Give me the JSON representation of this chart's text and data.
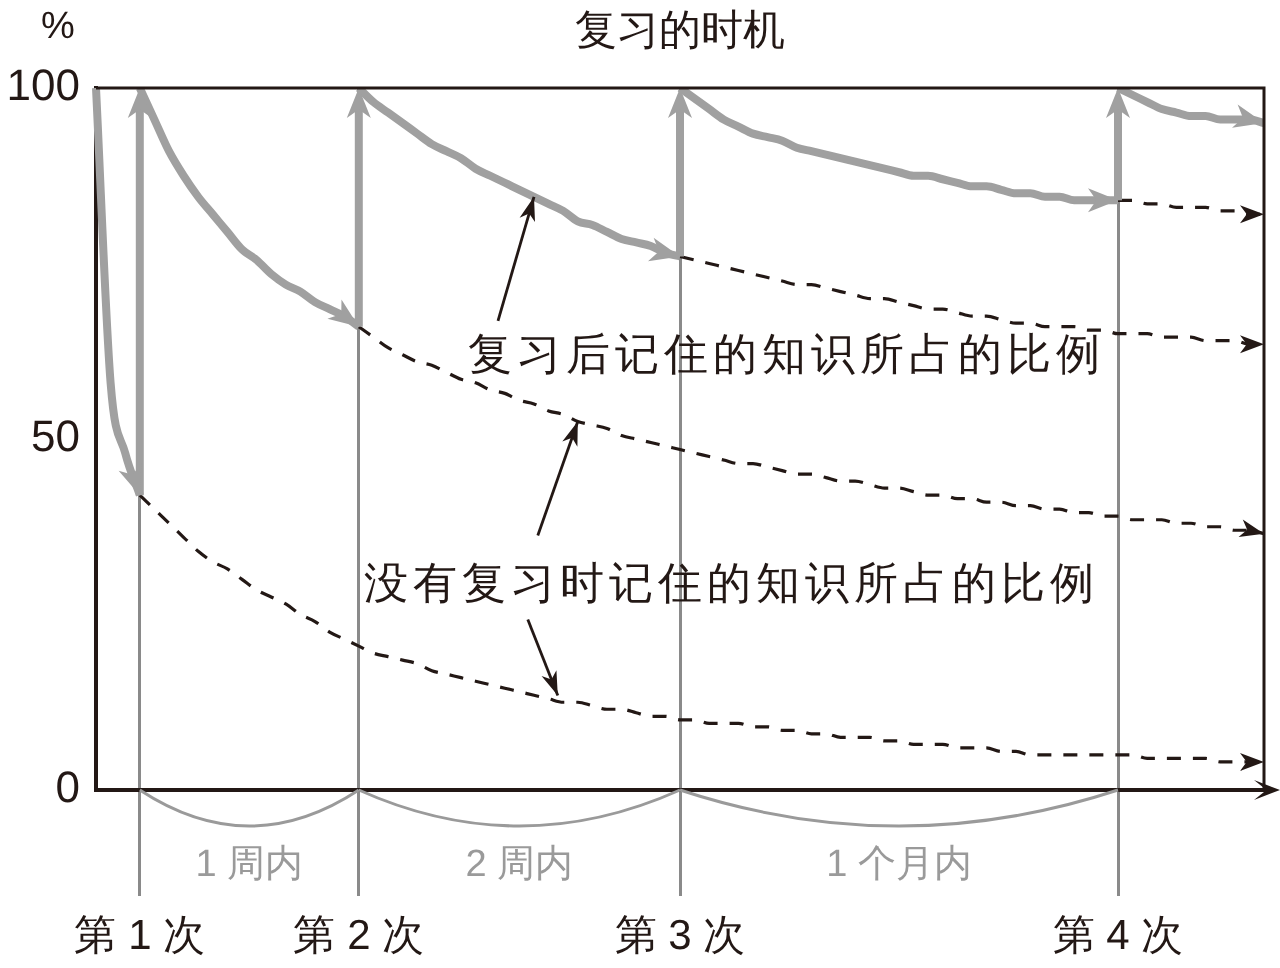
{
  "chart_data": {
    "type": "line",
    "title": "复习的时机",
    "ylabel": "%",
    "categories": [
      null,
      null,
      null,
      "第 1 次",
      null,
      null,
      null,
      null,
      null,
      null,
      null,
      null,
      null,
      null,
      null,
      null,
      null,
      null,
      "第 2 次",
      null,
      null,
      null,
      null,
      null,
      null,
      null,
      null,
      null,
      null,
      null,
      null,
      null,
      null,
      null,
      null,
      null,
      null,
      null,
      null,
      null,
      "第 3 次",
      null,
      null,
      null,
      null,
      null,
      null,
      null,
      null,
      null,
      null,
      null,
      null,
      null,
      null,
      null,
      null,
      null,
      null,
      null,
      null,
      null,
      null,
      null,
      null,
      null,
      null,
      null,
      null,
      null,
      "第 4 次",
      null,
      null,
      null,
      null,
      null,
      null,
      null,
      null,
      null,
      null
    ],
    "ylim": [
      0,
      100
    ],
    "yticks": [
      0,
      50,
      100
    ],
    "grid": "x",
    "legend": false,
    "marker": "none",
    "series": [
      {
        "type": "line",
        "color": "#a0a0a0",
        "line_style": "solid",
        "values": [
          100,
          58,
          48,
          42,
          null,
          null,
          null,
          null,
          null,
          null,
          null,
          null,
          null,
          null,
          null,
          null,
          null,
          null,
          null,
          null,
          null,
          null,
          null,
          null,
          null,
          null,
          null,
          null,
          null,
          null,
          null,
          null,
          null,
          null,
          null,
          null,
          null,
          null,
          null,
          null,
          null,
          null,
          null,
          null,
          null,
          null,
          null,
          null,
          null,
          null,
          null,
          null,
          null,
          null,
          null,
          null,
          null,
          null,
          null,
          null,
          null,
          null,
          null,
          null,
          null,
          null,
          null,
          null,
          null,
          null,
          null,
          null,
          null,
          null,
          null,
          null,
          null,
          null,
          null,
          null,
          null
        ]
      },
      {
        "type": "line",
        "color": "#a0a0a0",
        "line_style": "solid",
        "values": [
          null,
          null,
          null,
          100,
          95.5,
          91,
          87.5,
          84.5,
          82,
          79.5,
          77,
          75.5,
          73.5,
          72,
          71,
          69.5,
          68.5,
          67.5,
          66,
          null,
          null,
          null,
          null,
          null,
          null,
          null,
          null,
          null,
          null,
          null,
          null,
          null,
          null,
          null,
          null,
          null,
          null,
          null,
          null,
          null,
          null,
          null,
          null,
          null,
          null,
          null,
          null,
          null,
          null,
          null,
          null,
          null,
          null,
          null,
          null,
          null,
          null,
          null,
          null,
          null,
          null,
          null,
          null,
          null,
          null,
          null,
          null,
          null,
          null,
          null,
          null,
          null,
          null,
          null,
          null,
          null,
          null,
          null,
          null,
          null,
          null
        ]
      },
      {
        "type": "line",
        "name": "复习后记住的知识所占的比例",
        "color": "#a0a0a0",
        "line_style": "solid",
        "values": [
          null,
          null,
          null,
          null,
          null,
          null,
          null,
          null,
          null,
          null,
          null,
          null,
          null,
          null,
          null,
          null,
          null,
          null,
          100,
          98,
          96.5,
          95,
          93.5,
          92,
          91,
          90,
          88.5,
          87.5,
          86.5,
          85.5,
          84.5,
          83.5,
          82.5,
          81,
          80.5,
          79.5,
          78.5,
          78,
          77.5,
          76.5,
          76,
          null,
          null,
          null,
          null,
          null,
          null,
          null,
          null,
          null,
          null,
          null,
          null,
          null,
          null,
          null,
          null,
          null,
          null,
          null,
          null,
          null,
          null,
          null,
          null,
          null,
          null,
          null,
          null,
          null,
          null,
          null,
          null,
          null,
          null,
          null,
          null,
          null,
          null,
          null,
          null
        ]
      },
      {
        "type": "line",
        "color": "#a0a0a0",
        "line_style": "solid",
        "values": [
          null,
          null,
          null,
          null,
          null,
          null,
          null,
          null,
          null,
          null,
          null,
          null,
          null,
          null,
          null,
          null,
          null,
          null,
          null,
          null,
          null,
          null,
          null,
          null,
          null,
          null,
          null,
          null,
          null,
          null,
          null,
          null,
          null,
          null,
          null,
          null,
          null,
          null,
          null,
          null,
          100,
          98.5,
          97,
          95.5,
          94.5,
          93.5,
          93,
          92.5,
          91.5,
          91,
          90.5,
          90,
          89.5,
          89,
          88.5,
          88,
          87.5,
          87.5,
          87,
          86.5,
          86,
          86,
          85.5,
          85,
          85,
          84.5,
          84.5,
          84,
          84,
          84,
          84,
          null,
          null,
          null,
          null,
          null,
          null,
          null,
          null,
          null,
          null
        ]
      },
      {
        "type": "line",
        "color": "#a0a0a0",
        "line_style": "solid",
        "values": [
          null,
          null,
          null,
          null,
          null,
          null,
          null,
          null,
          null,
          null,
          null,
          null,
          null,
          null,
          null,
          null,
          null,
          null,
          null,
          null,
          null,
          null,
          null,
          null,
          null,
          null,
          null,
          null,
          null,
          null,
          null,
          null,
          null,
          null,
          null,
          null,
          null,
          null,
          null,
          null,
          null,
          null,
          null,
          null,
          null,
          null,
          null,
          null,
          null,
          null,
          null,
          null,
          null,
          null,
          null,
          null,
          null,
          null,
          null,
          null,
          null,
          null,
          null,
          null,
          null,
          null,
          null,
          null,
          null,
          null,
          100,
          99,
          98,
          97,
          96.5,
          96,
          96,
          95.5,
          95.5,
          95.5,
          95
        ]
      },
      {
        "type": "line",
        "color": "#231815",
        "line_style": "dashed",
        "values": [
          null,
          null,
          null,
          42,
          40,
          38,
          36,
          34,
          32.5,
          31.5,
          30,
          28.5,
          27.5,
          26.5,
          25,
          24,
          22.5,
          21.5,
          20.5,
          19.5,
          19,
          18.5,
          18,
          17,
          16.5,
          16,
          15.5,
          15,
          14.5,
          14,
          13.5,
          13,
          12.5,
          12.5,
          12,
          11.5,
          11.5,
          11,
          10.5,
          10.5,
          10,
          10,
          9.5,
          9.5,
          9.5,
          9,
          9,
          8.5,
          8.5,
          8,
          8,
          7.5,
          7.5,
          7.5,
          7,
          7,
          6.5,
          6.5,
          6.5,
          6,
          6,
          6,
          5.5,
          5.5,
          5,
          5,
          5,
          5,
          5,
          5,
          5,
          5,
          4.5,
          4.5,
          4.5,
          4.5,
          4.5,
          4,
          4,
          4,
          4
        ]
      },
      {
        "type": "line",
        "name": "没有复习时记住的知识所占的比例",
        "color": "#231815",
        "line_style": "dashed",
        "values": [
          null,
          null,
          null,
          null,
          null,
          null,
          null,
          null,
          null,
          null,
          null,
          null,
          null,
          null,
          null,
          null,
          null,
          null,
          66,
          64.5,
          63,
          62,
          61,
          60.5,
          59.5,
          58.5,
          58,
          57,
          56.5,
          55.5,
          55,
          54,
          53.5,
          52.5,
          52,
          51.5,
          50.5,
          50,
          49.5,
          49,
          48.5,
          48,
          47.5,
          47,
          46.5,
          46.5,
          46,
          45.5,
          45,
          45,
          44.5,
          44,
          44,
          43.5,
          43,
          43,
          42.5,
          42,
          42,
          41.5,
          41.5,
          41,
          41,
          40.5,
          40.5,
          40,
          40,
          39.5,
          39.5,
          39,
          39,
          38.5,
          38.5,
          38.5,
          38,
          38,
          37.5,
          37.5,
          37,
          37,
          36.5
        ]
      },
      {
        "type": "line",
        "color": "#231815",
        "line_style": "dashed",
        "values": [
          null,
          null,
          null,
          null,
          null,
          null,
          null,
          null,
          null,
          null,
          null,
          null,
          null,
          null,
          null,
          null,
          null,
          null,
          null,
          null,
          null,
          null,
          null,
          null,
          null,
          null,
          null,
          null,
          null,
          null,
          null,
          null,
          null,
          null,
          null,
          null,
          null,
          null,
          null,
          null,
          76,
          75.5,
          75,
          74.5,
          74,
          73.5,
          73,
          72.5,
          72,
          72,
          71.5,
          71,
          70.5,
          70,
          70,
          69.5,
          69,
          68.5,
          68.5,
          68,
          67.5,
          67.5,
          67,
          66.5,
          66.5,
          66,
          66,
          66,
          65.5,
          65.5,
          65,
          65,
          65,
          64.5,
          64.5,
          64.5,
          64,
          64,
          64,
          63.5,
          63.5
        ]
      },
      {
        "type": "line",
        "color": "#231815",
        "line_style": "dashed",
        "values": [
          null,
          null,
          null,
          null,
          null,
          null,
          null,
          null,
          null,
          null,
          null,
          null,
          null,
          null,
          null,
          null,
          null,
          null,
          null,
          null,
          null,
          null,
          null,
          null,
          null,
          null,
          null,
          null,
          null,
          null,
          null,
          null,
          null,
          null,
          null,
          null,
          null,
          null,
          null,
          null,
          null,
          null,
          null,
          null,
          null,
          null,
          null,
          null,
          null,
          null,
          null,
          null,
          null,
          null,
          null,
          null,
          null,
          null,
          null,
          null,
          null,
          null,
          null,
          null,
          null,
          null,
          null,
          null,
          null,
          null,
          84,
          84,
          83.5,
          83.5,
          83,
          83,
          83,
          82.5,
          82.5,
          82,
          82
        ]
      }
    ],
    "annotations": [
      "1 周内",
      "2 周内",
      "1 个月内"
    ]
  }
}
